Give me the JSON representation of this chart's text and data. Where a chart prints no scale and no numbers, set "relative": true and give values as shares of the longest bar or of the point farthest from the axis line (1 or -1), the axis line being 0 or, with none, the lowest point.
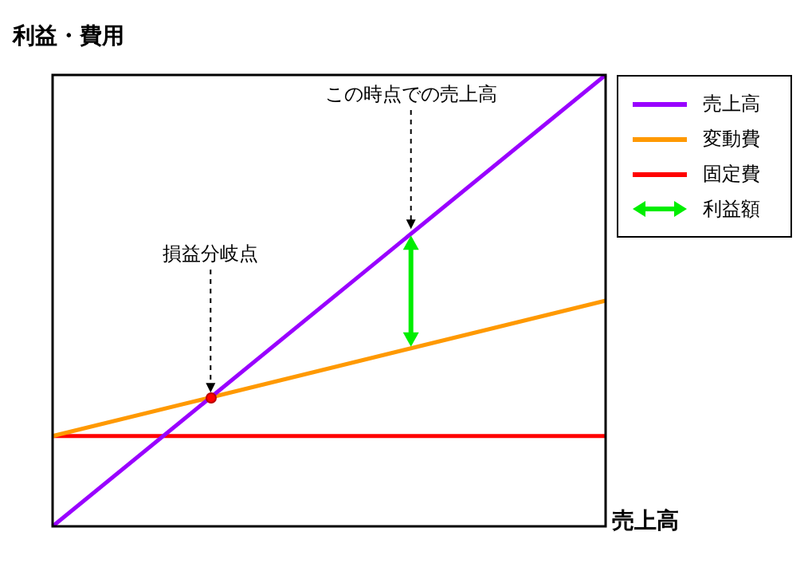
{
  "chart_data": {
    "type": "line",
    "relative": true,
    "ylabel": "利益・費用",
    "xlabel": "売上高",
    "categories": [
      null,
      null
    ],
    "legend": "top right",
    "marker": "none",
    "line_style": "solid",
    "series": [
      {
        "name": "売上高",
        "color": "#9900ff",
        "values": [
          0,
          1
        ]
      },
      {
        "name": "変動費",
        "color": "#ff9900",
        "values": [
          0.2,
          0.5
        ]
      },
      {
        "name": "固定費",
        "color": "#ff0000",
        "values": [
          0.2,
          0.2
        ]
      },
      {
        "name": "利益額",
        "color": "#00ee00",
        "type": "line",
        "values": [
          null,
          null
        ]
      }
    ],
    "annotations": [
      "この時点での売上高",
      "損益分岐点"
    ]
  }
}
